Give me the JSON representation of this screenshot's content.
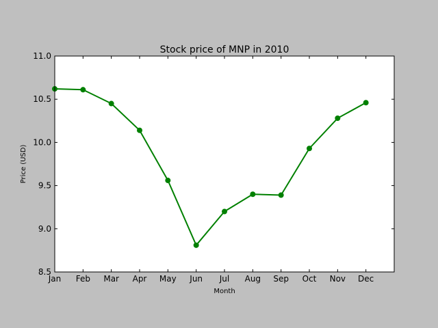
{
  "chart_data": {
    "type": "line",
    "title": "Stock price of MNP in 2010",
    "xlabel": "Month",
    "ylabel": "Price (USD)",
    "categories": [
      "Jan",
      "Feb",
      "Mar",
      "Apr",
      "May",
      "Jun",
      "Jul",
      "Aug",
      "Sep",
      "Oct",
      "Nov",
      "Dec"
    ],
    "series": [
      {
        "values": [
          10.62,
          10.61,
          10.45,
          10.14,
          9.56,
          8.81,
          9.2,
          9.4,
          9.39,
          9.93,
          10.28,
          10.46
        ],
        "color": "#008000",
        "marker": "circle"
      }
    ],
    "ylim": [
      8.5,
      11.0
    ],
    "yticks": [
      "8.5",
      "9.0",
      "9.5",
      "10.0",
      "10.5",
      "11.0"
    ],
    "xlim": [
      0,
      12
    ],
    "grid": false,
    "legend": false
  }
}
